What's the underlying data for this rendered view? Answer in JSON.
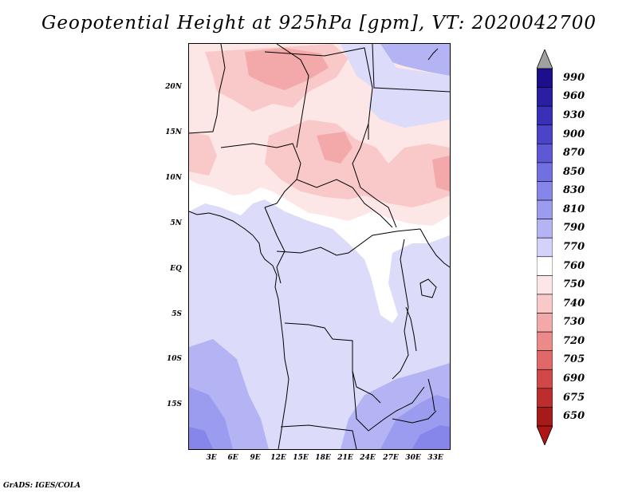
{
  "title": "Geopotential Height at 925hPa [gpm], VT: 2020042700",
  "map": {
    "lat_labels": [
      "20N",
      "15N",
      "10N",
      "5N",
      "EQ",
      "5S",
      "10S",
      "15S"
    ],
    "lon_labels": [
      "3E",
      "6E",
      "9E",
      "12E",
      "15E",
      "18E",
      "21E",
      "24E",
      "27E",
      "30E",
      "33E"
    ]
  },
  "colorbar": {
    "levels": [
      "990",
      "960",
      "930",
      "900",
      "870",
      "850",
      "830",
      "810",
      "790",
      "770",
      "760",
      "750",
      "740",
      "730",
      "720",
      "705",
      "690",
      "675",
      "650"
    ],
    "colors": [
      "#1b0f8c",
      "#2a1fa3",
      "#3a30b8",
      "#4b43c8",
      "#5d58d6",
      "#7070e0",
      "#8585ea",
      "#9b9bf0",
      "#b4b4f5",
      "#d2d2fa",
      "#ffffff",
      "#fde6e6",
      "#f9c9c9",
      "#f3a9a9",
      "#ec8a8a",
      "#e06868",
      "#d04848",
      "#bc2e2e",
      "#a61a1a"
    ],
    "top_arrow_color": "#a0a0a0",
    "bottom_arrow_color": "#b01515"
  },
  "footer": "GrADS: IGES/COLA"
}
